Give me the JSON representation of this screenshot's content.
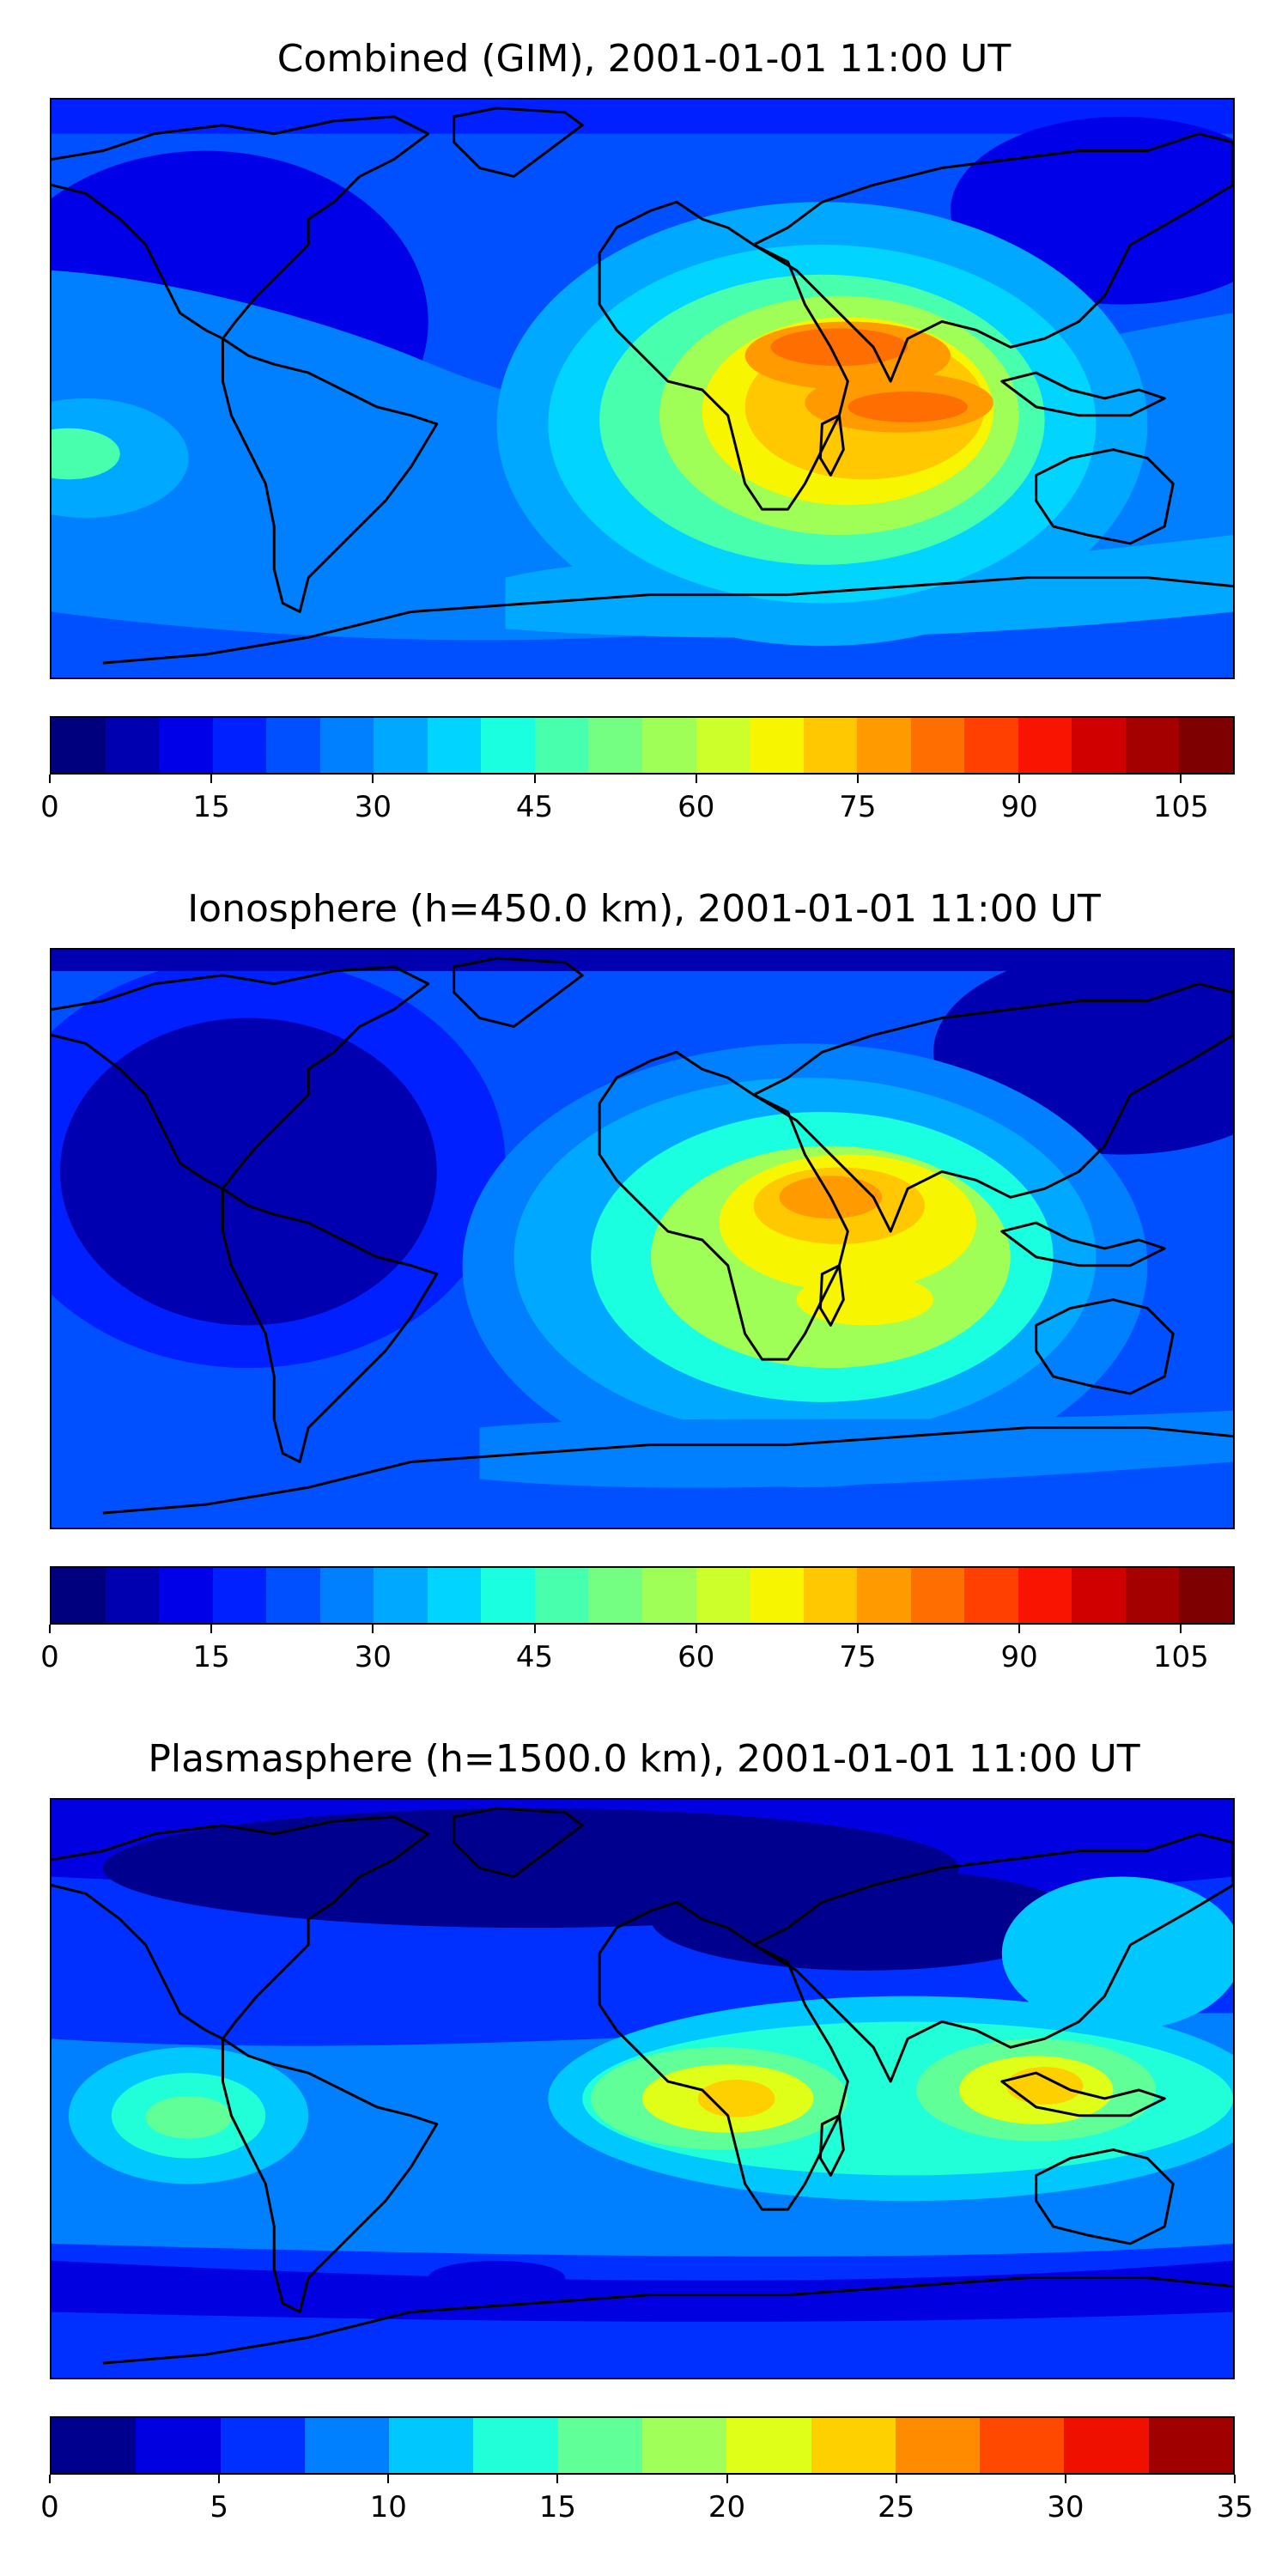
{
  "panels": [
    {
      "title": "Combined (GIM), 2001-01-01 11:00 UT",
      "colorbar": {
        "min": 0,
        "max": 110,
        "ticks": [
          "0",
          "15",
          "30",
          "45",
          "60",
          "75",
          "90",
          "105"
        ],
        "levels": 22
      },
      "map_data": {
        "type": "filled-contour",
        "field": "TEC",
        "peak_region": "Arabian Peninsula / Indian Ocean",
        "peak_level": 85
      }
    },
    {
      "title": "Ionosphere  (h=450.0 km), 2001-01-01 11:00 UT",
      "colorbar": {
        "min": 0,
        "max": 110,
        "ticks": [
          "0",
          "15",
          "30",
          "45",
          "60",
          "75",
          "90",
          "105"
        ],
        "levels": 22
      },
      "map_data": {
        "type": "filled-contour",
        "field": "TEC",
        "peak_region": "Arabian Peninsula",
        "peak_level": 80
      }
    },
    {
      "title": "Plasmasphere (h=1500.0 km), 2001-01-01 11:00 UT",
      "colorbar": {
        "min": 0,
        "max": 35,
        "ticks": [
          "0",
          "5",
          "10",
          "15",
          "20",
          "25",
          "30",
          "35"
        ],
        "levels": 14
      },
      "map_data": {
        "type": "filled-contour",
        "field": "TEC",
        "peak_region": "Central Africa / Indonesia",
        "peak_level": 24
      }
    }
  ],
  "colors": {
    "jet22": [
      "#00007f",
      "#0000b0",
      "#0000e8",
      "#0020ff",
      "#0050ff",
      "#0080ff",
      "#00a8ff",
      "#00d4ff",
      "#1affe0",
      "#48ffae",
      "#74ff82",
      "#a0ff56",
      "#cdff2a",
      "#f8f500",
      "#ffc800",
      "#ff9a00",
      "#ff6e00",
      "#ff4000",
      "#f81400",
      "#d00000",
      "#a40000",
      "#7f0000"
    ],
    "jet14": [
      "#00008f",
      "#0000e0",
      "#0030ff",
      "#0080ff",
      "#00c8ff",
      "#20ffd8",
      "#60ff98",
      "#a0ff58",
      "#e0ff18",
      "#ffd000",
      "#ff8c00",
      "#ff4800",
      "#f01000",
      "#a00000"
    ],
    "coast": "#000000"
  }
}
